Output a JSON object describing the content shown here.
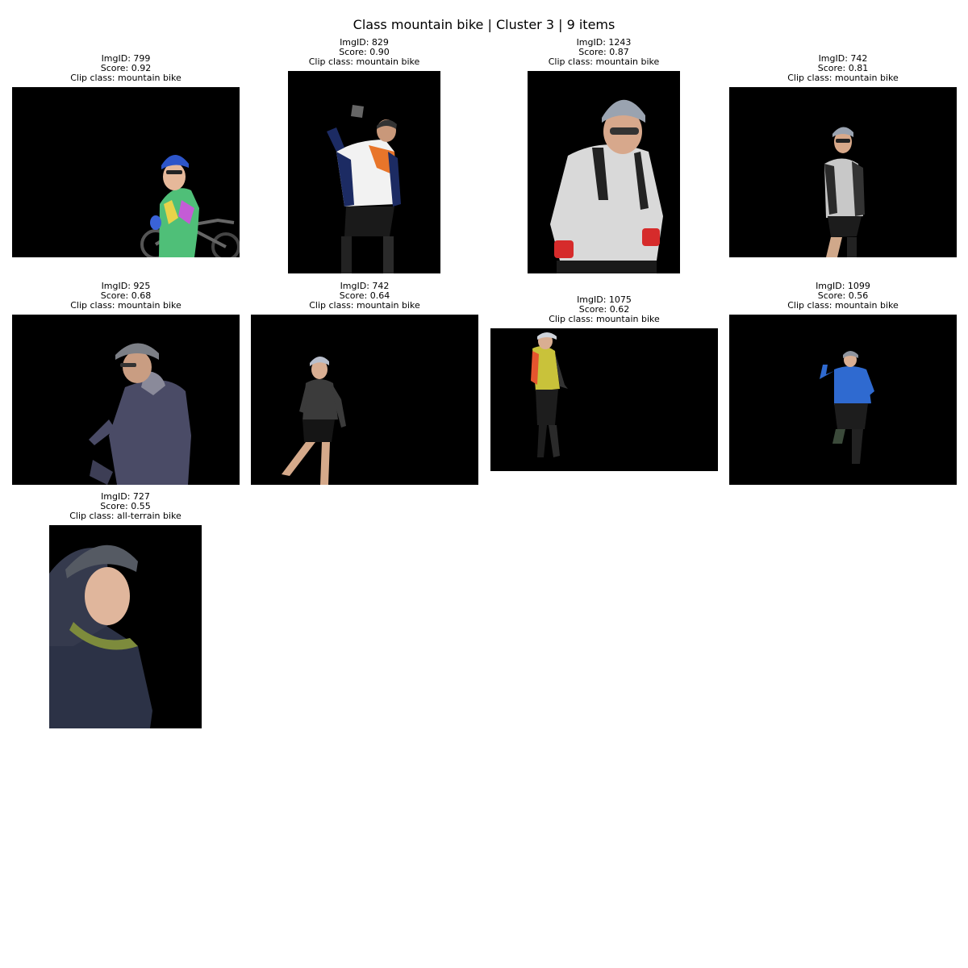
{
  "figure": {
    "title": "Class mountain bike | Cluster 3 | 9 items"
  },
  "panels": [
    {
      "img_id": "ImgID: 799",
      "score": "Score: 0.92",
      "clip_class": "Clip class: mountain bike",
      "subject": "cyclist-with-bike"
    },
    {
      "img_id": "ImgID: 829",
      "score": "Score: 0.90",
      "clip_class": "Clip class: mountain bike",
      "subject": "cyclist-drinking"
    },
    {
      "img_id": "ImgID: 1243",
      "score": "Score: 0.87",
      "clip_class": "Clip class: mountain bike",
      "subject": "cyclist-portrait"
    },
    {
      "img_id": "ImgID: 742",
      "score": "Score: 0.81",
      "clip_class": "Clip class: mountain bike",
      "subject": "cyclist-standing"
    },
    {
      "img_id": "ImgID: 925",
      "score": "Score: 0.68",
      "clip_class": "Clip class: mountain bike",
      "subject": "cyclist-riding"
    },
    {
      "img_id": "ImgID: 742",
      "score": "Score: 0.64",
      "clip_class": "Clip class: mountain bike",
      "subject": "cyclist-walking"
    },
    {
      "img_id": "ImgID: 1075",
      "score": "Score: 0.62",
      "clip_class": "Clip class: mountain bike",
      "subject": "cyclist-walking"
    },
    {
      "img_id": "ImgID: 1099",
      "score": "Score: 0.56",
      "clip_class": "Clip class: mountain bike",
      "subject": "cyclist-waving"
    },
    {
      "img_id": "ImgID: 727",
      "score": "Score: 0.55",
      "clip_class": "Clip class: all-terrain bike",
      "subject": "cyclist-closeup"
    }
  ]
}
